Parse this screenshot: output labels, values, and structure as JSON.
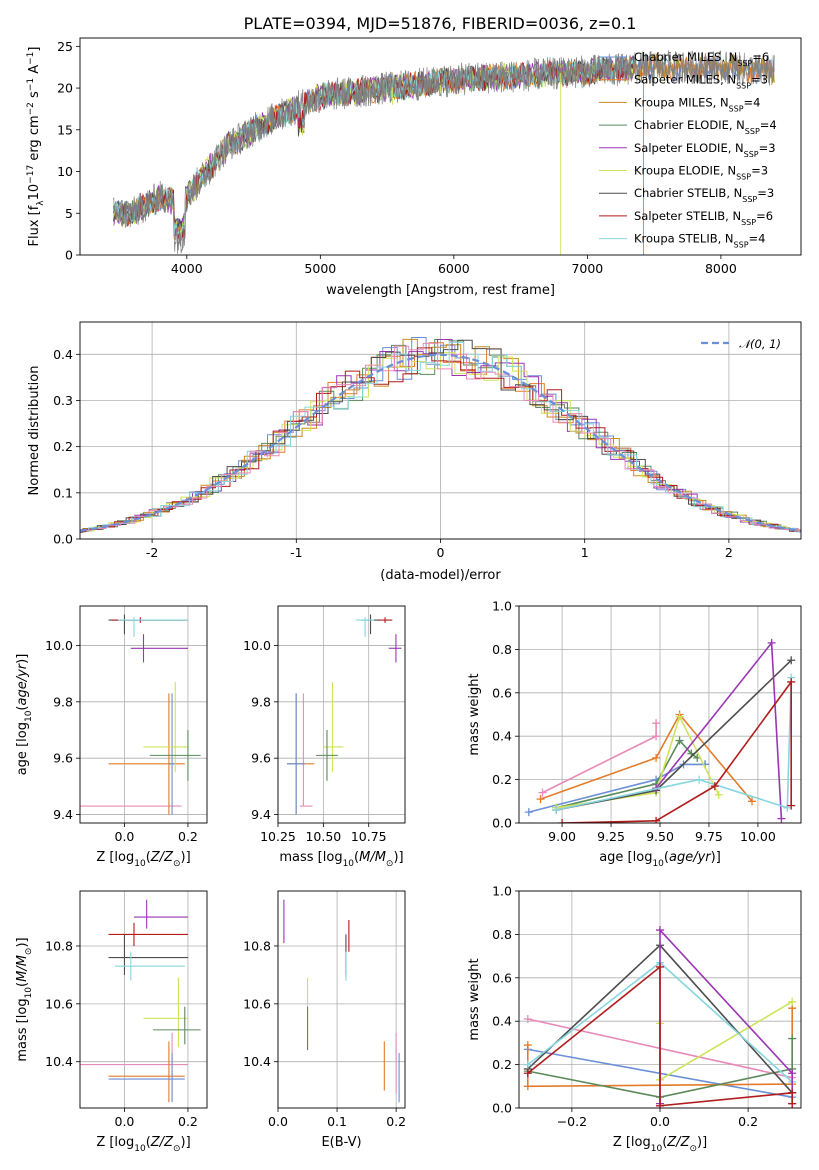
{
  "figure": {
    "title": "PLATE=0394, MJD=51876, FIBERID=0036, z=0.1",
    "colors": {
      "chabrier_miles": "#6a8fd8",
      "salpeter_miles": "#e37b2a",
      "kroupa_miles": "#c98a1e",
      "chabrier_elodie": "#5a8a5a",
      "salpeter_elodie": "#9b35b3",
      "kroupa_elodie": "#cfe35a",
      "chabrier_stelib": "#4d4d4d",
      "salpeter_stelib": "#b01c1c",
      "kroupa_stelib": "#86d6e0",
      "pink": "#e88ab9",
      "data": "#808080",
      "gauss": "#6a8fd8"
    }
  },
  "chart_data": [
    {
      "id": "spectrum",
      "type": "line",
      "title": "PLATE=0394, MJD=51876, FIBERID=0036, z=0.1",
      "xlabel": "wavelength [Angstrom, rest frame]",
      "ylabel": "Flux [fλ10⁻¹⁷ erg cm⁻² s⁻¹ A⁻¹]",
      "xlim": [
        3200,
        8600
      ],
      "ylim": [
        0,
        26
      ],
      "xticks": [
        4000,
        5000,
        6000,
        7000,
        8000
      ],
      "yticks": [
        0,
        5,
        10,
        15,
        20,
        25
      ],
      "legend_position": "right",
      "legend": [
        {
          "label": "Chabrier MILES, N",
          "sub": "SSP",
          "suffix": "=6",
          "key": "chabrier_miles"
        },
        {
          "label": "Salpeter MILES, N",
          "sub": "SSP",
          "suffix": "=3",
          "key": "salpeter_miles"
        },
        {
          "label": "Kroupa MILES, N",
          "sub": "SSP",
          "suffix": "=4",
          "key": "kroupa_miles"
        },
        {
          "label": "Chabrier ELODIE, N",
          "sub": "SSP",
          "suffix": "=4",
          "key": "chabrier_elodie"
        },
        {
          "label": "Salpeter ELODIE, N",
          "sub": "SSP",
          "suffix": "=3",
          "key": "salpeter_elodie"
        },
        {
          "label": "Kroupa ELODIE, N",
          "sub": "SSP",
          "suffix": "=3",
          "key": "kroupa_elodie"
        },
        {
          "label": "Chabrier STELIB, N",
          "sub": "SSP",
          "suffix": "=3",
          "key": "chabrier_stelib"
        },
        {
          "label": "Salpeter STELIB, N",
          "sub": "SSP",
          "suffix": "=6",
          "key": "salpeter_stelib"
        },
        {
          "label": "Kroupa STELIB, N",
          "sub": "SSP",
          "suffix": "=4",
          "key": "kroupa_stelib"
        }
      ],
      "continuum": {
        "x": [
          3450,
          3600,
          3800,
          3950,
          4100,
          4300,
          4600,
          5000,
          5500,
          6000,
          6500,
          7000,
          7500,
          8000,
          8400
        ],
        "y": [
          5,
          5,
          7,
          6,
          9,
          13,
          16,
          19,
          20,
          21,
          21.5,
          22,
          22.5,
          22.5,
          22
        ]
      },
      "dips": [
        {
          "series": "kroupa_elodie",
          "x": 6800,
          "y": 0
        },
        {
          "series": "salpeter_miles",
          "x": 7420,
          "y": 0
        },
        {
          "series": "kroupa_elodie",
          "x": 5540,
          "y": 18
        }
      ]
    },
    {
      "id": "residuals",
      "type": "bar",
      "xlabel": "(data-model)/error",
      "ylabel": "Normed distribution",
      "xlim": [
        -2.5,
        2.5
      ],
      "ylim": [
        0,
        0.47
      ],
      "xticks": [
        -2,
        -1,
        0,
        1,
        2
      ],
      "yticks": [
        0.0,
        0.1,
        0.2,
        0.3,
        0.4
      ],
      "grid": true,
      "legend_position": "top-right",
      "legend_label": "𝒩(0, 1)",
      "gaussian": {
        "mean": 0,
        "sigma": 1,
        "style": "dashed"
      },
      "bin_width": 0.1
    },
    {
      "id": "age_vs_Z",
      "type": "scatter",
      "xlabel": "Z [log₁₀(Z/Z⊙)]",
      "ylabel": "age  [log₁₀(age/yr)]",
      "xlim": [
        -0.14,
        0.26
      ],
      "ylim": [
        9.37,
        10.14
      ],
      "xticks": [
        0.0,
        0.2
      ],
      "yticks": [
        9.4,
        9.6,
        9.8,
        10.0
      ],
      "grid": true,
      "points": [
        {
          "key": "pink",
          "x": 0.05,
          "y": 9.43,
          "xl": -0.14,
          "xh": 0.18,
          "yl": 9.43,
          "yh": 9.43
        },
        {
          "key": "salpeter_miles",
          "x": 0.14,
          "y": 9.58,
          "xl": -0.05,
          "xh": 0.19,
          "yl": 9.4,
          "yh": 9.83
        },
        {
          "key": "chabrier_miles",
          "x": 0.15,
          "y": 9.58,
          "xl": 0.14,
          "xh": 0.16,
          "yl": 9.4,
          "yh": 9.83
        },
        {
          "key": "kroupa_elodie",
          "x": 0.16,
          "y": 9.64,
          "xl": 0.06,
          "xh": 0.2,
          "yl": 9.55,
          "yh": 9.87
        },
        {
          "key": "chabrier_elodie",
          "x": 0.2,
          "y": 9.61,
          "xl": 0.08,
          "xh": 0.24,
          "yl": 9.52,
          "yh": 9.7
        },
        {
          "key": "salpeter_elodie",
          "x": 0.06,
          "y": 9.99,
          "xl": 0.02,
          "xh": 0.2,
          "yl": 9.94,
          "yh": 10.04
        },
        {
          "key": "chabrier_stelib",
          "x": 0.0,
          "y": 10.09,
          "xl": -0.05,
          "xh": 0.2,
          "yl": 10.04,
          "yh": 10.11
        },
        {
          "key": "salpeter_stelib",
          "x": 0.05,
          "y": 10.09,
          "xl": -0.04,
          "xh": 0.19,
          "yl": 10.08,
          "yh": 10.1
        },
        {
          "key": "kroupa_stelib",
          "x": 0.03,
          "y": 10.09,
          "xl": -0.02,
          "xh": 0.2,
          "yl": 10.03,
          "yh": 10.1
        }
      ]
    },
    {
      "id": "age_vs_mass",
      "type": "scatter",
      "xlabel": "mass [log₁₀(M/M⊙)]",
      "xlim": [
        10.25,
        10.95
      ],
      "ylim": [
        9.37,
        10.14
      ],
      "xticks": [
        10.25,
        10.5,
        10.75
      ],
      "yticks": [
        9.4,
        9.6,
        9.8,
        10.0
      ],
      "grid": true,
      "points": [
        {
          "key": "pink",
          "x": 10.39,
          "y": 9.43,
          "xl": 10.37,
          "xh": 10.44,
          "yl": 9.43,
          "yh": 9.83
        },
        {
          "key": "salpeter_miles",
          "x": 10.35,
          "y": 9.58,
          "xl": 10.3,
          "xh": 10.45,
          "yl": 9.4,
          "yh": 9.83
        },
        {
          "key": "chabrier_miles",
          "x": 10.35,
          "y": 9.58,
          "xl": 10.3,
          "xh": 10.4,
          "yl": 9.4,
          "yh": 9.83
        },
        {
          "key": "kroupa_elodie",
          "x": 10.55,
          "y": 9.64,
          "xl": 10.5,
          "xh": 10.61,
          "yl": 9.55,
          "yh": 9.87
        },
        {
          "key": "chabrier_elodie",
          "x": 10.52,
          "y": 9.61,
          "xl": 10.46,
          "xh": 10.58,
          "yl": 9.52,
          "yh": 9.7
        },
        {
          "key": "salpeter_elodie",
          "x": 10.9,
          "y": 9.99,
          "xl": 10.86,
          "xh": 10.93,
          "yl": 9.94,
          "yh": 10.04
        },
        {
          "key": "chabrier_stelib",
          "x": 10.76,
          "y": 10.09,
          "xl": 10.71,
          "xh": 10.81,
          "yl": 10.04,
          "yh": 10.11
        },
        {
          "key": "salpeter_stelib",
          "x": 10.84,
          "y": 10.09,
          "xl": 10.8,
          "xh": 10.88,
          "yl": 10.08,
          "yh": 10.1
        },
        {
          "key": "kroupa_stelib",
          "x": 10.73,
          "y": 10.09,
          "xl": 10.68,
          "xh": 10.78,
          "yl": 10.03,
          "yh": 10.1
        }
      ]
    },
    {
      "id": "weight_vs_age",
      "type": "line",
      "xlabel": "age  [log₁₀(age/yr)]",
      "ylabel": "mass weight",
      "xlim": [
        8.78,
        10.22
      ],
      "ylim": [
        0,
        1.0
      ],
      "xticks": [
        9.0,
        9.25,
        9.5,
        9.75,
        10.0
      ],
      "yticks": [
        0.0,
        0.2,
        0.4,
        0.6,
        0.8,
        1.0
      ],
      "grid": true,
      "series": [
        {
          "key": "chabrier_miles",
          "x": [
            8.83,
            9.48,
            9.62,
            9.73,
            9.73
          ],
          "y": [
            0.05,
            0.2,
            0.27,
            0.27,
            0.27
          ]
        },
        {
          "key": "salpeter_miles",
          "x": [
            8.89,
            9.48,
            9.6,
            9.97
          ],
          "y": [
            0.11,
            0.3,
            0.5,
            0.1
          ]
        },
        {
          "key": "pink",
          "x": [
            8.9,
            9.48,
            9.48
          ],
          "y": [
            0.14,
            0.4,
            0.46
          ]
        },
        {
          "key": "chabrier_elodie",
          "x": [
            8.97,
            9.48,
            9.6,
            9.66,
            9.69
          ],
          "y": [
            0.07,
            0.18,
            0.38,
            0.32,
            0.3
          ]
        },
        {
          "key": "kroupa_elodie",
          "x": [
            8.97,
            9.48,
            9.6,
            9.8
          ],
          "y": [
            0.07,
            0.14,
            0.49,
            0.13
          ]
        },
        {
          "key": "chabrier_stelib",
          "x": [
            8.97,
            9.48,
            10.17
          ],
          "y": [
            0.06,
            0.15,
            0.75
          ]
        },
        {
          "key": "salpeter_elodie",
          "x": [
            9.48,
            10.07,
            10.12
          ],
          "y": [
            0.16,
            0.83,
            0.02
          ]
        },
        {
          "key": "kroupa_stelib",
          "x": [
            8.97,
            9.7,
            10.15,
            10.17
          ],
          "y": [
            0.06,
            0.2,
            0.07,
            0.67
          ]
        },
        {
          "key": "salpeter_stelib",
          "x": [
            9.0,
            9.48,
            9.78,
            10.17,
            10.17
          ],
          "y": [
            0.0,
            0.01,
            0.17,
            0.65,
            0.08
          ]
        }
      ]
    },
    {
      "id": "mass_vs_Z",
      "type": "scatter",
      "xlabel": "Z [log₁₀(Z/Z⊙)]",
      "ylabel": "mass [log₁₀(M/M⊙)]",
      "xlim": [
        -0.14,
        0.26
      ],
      "ylim": [
        10.24,
        10.99
      ],
      "xticks": [
        0.0,
        0.2
      ],
      "yticks": [
        10.4,
        10.6,
        10.8
      ],
      "grid": true,
      "points": [
        {
          "key": "pink",
          "x": 0.15,
          "y": 10.39,
          "xl": -0.14,
          "xh": 0.2,
          "yl": 10.27,
          "yh": 10.5
        },
        {
          "key": "salpeter_miles",
          "x": 0.14,
          "y": 10.35,
          "xl": -0.05,
          "xh": 0.19,
          "yl": 10.26,
          "yh": 10.47
        },
        {
          "key": "chabrier_miles",
          "x": 0.15,
          "y": 10.34,
          "xl": -0.05,
          "xh": 0.19,
          "yl": 10.26,
          "yh": 10.43
        },
        {
          "key": "kroupa_elodie",
          "x": 0.17,
          "y": 10.55,
          "xl": 0.06,
          "xh": 0.2,
          "yl": 10.45,
          "yh": 10.69
        },
        {
          "key": "chabrier_elodie",
          "x": 0.19,
          "y": 10.51,
          "xl": 0.09,
          "xh": 0.24,
          "yl": 10.46,
          "yh": 10.59
        },
        {
          "key": "salpeter_elodie",
          "x": 0.07,
          "y": 10.9,
          "xl": 0.03,
          "xh": 0.2,
          "yl": 10.86,
          "yh": 10.96
        },
        {
          "key": "salpeter_stelib",
          "x": 0.03,
          "y": 10.84,
          "xl": -0.05,
          "xh": 0.2,
          "yl": 10.8,
          "yh": 10.88
        },
        {
          "key": "chabrier_stelib",
          "x": 0.0,
          "y": 10.76,
          "xl": -0.05,
          "xh": 0.2,
          "yl": 10.7,
          "yh": 10.84
        },
        {
          "key": "kroupa_stelib",
          "x": 0.02,
          "y": 10.73,
          "xl": -0.03,
          "xh": 0.19,
          "yl": 10.68,
          "yh": 10.78
        }
      ]
    },
    {
      "id": "mass_vs_ebv",
      "type": "scatter",
      "xlabel": "E(B-V)",
      "xlim": [
        0.0,
        0.215
      ],
      "ylim": [
        10.24,
        10.99
      ],
      "xticks": [
        0.0,
        0.1,
        0.2
      ],
      "yticks": [
        10.4,
        10.6,
        10.8
      ],
      "grid": true,
      "points": [
        {
          "key": "salpeter_elodie",
          "x": 0.01,
          "y": 10.9,
          "yl": 10.81,
          "yh": 10.96
        },
        {
          "key": "kroupa_elodie",
          "x": 0.05,
          "y": 10.55,
          "yl": 10.45,
          "yh": 10.69
        },
        {
          "key": "chabrier_elodie",
          "x": 0.05,
          "y": 10.51,
          "yl": 10.44,
          "yh": 10.59
        },
        {
          "key": "salpeter_stelib",
          "x": 0.12,
          "y": 10.84,
          "yl": 10.78,
          "yh": 10.89
        },
        {
          "key": "chabrier_stelib",
          "x": 0.115,
          "y": 10.76,
          "yl": 10.7,
          "yh": 10.84
        },
        {
          "key": "kroupa_stelib",
          "x": 0.115,
          "y": 10.73,
          "yl": 10.68,
          "yh": 10.78
        },
        {
          "key": "salpeter_miles",
          "x": 0.18,
          "y": 10.35,
          "yl": 10.3,
          "yh": 10.47
        },
        {
          "key": "pink",
          "x": 0.2,
          "y": 10.39,
          "yl": 10.29,
          "yh": 10.5
        },
        {
          "key": "chabrier_miles",
          "x": 0.205,
          "y": 10.34,
          "yl": 10.26,
          "yh": 10.43
        }
      ]
    },
    {
      "id": "weight_vs_Z",
      "type": "line",
      "xlabel": "Z [log₁₀(Z/Z⊙)]",
      "ylabel": "mass weight",
      "xlim": [
        -0.32,
        0.32
      ],
      "ylim": [
        0,
        1.0
      ],
      "xticks": [
        -0.2,
        0.0,
        0.2
      ],
      "yticks": [
        0.0,
        0.2,
        0.4,
        0.6,
        0.8,
        1.0
      ],
      "grid": true,
      "series": [
        {
          "key": "pink",
          "x": [
            -0.3,
            0.3
          ],
          "y": [
            0.41,
            0.14
          ]
        },
        {
          "key": "chabrier_miles",
          "x": [
            -0.3,
            0.3
          ],
          "y": [
            0.27,
            0.05
          ]
        },
        {
          "key": "salpeter_miles",
          "x": [
            -0.3,
            -0.3,
            0.3,
            0.3
          ],
          "y": [
            0.29,
            0.1,
            0.11,
            0.46
          ]
        },
        {
          "key": "kroupa_elodie",
          "x": [
            0.0,
            0.0,
            0.3
          ],
          "y": [
            0.39,
            0.13,
            0.49
          ]
        },
        {
          "key": "chabrier_elodie",
          "x": [
            -0.3,
            0.0,
            0.3,
            0.3
          ],
          "y": [
            0.17,
            0.05,
            0.18,
            0.32
          ]
        },
        {
          "key": "chabrier_stelib",
          "x": [
            -0.3,
            0.0,
            0.3
          ],
          "y": [
            0.18,
            0.75,
            0.07
          ]
        },
        {
          "key": "kroupa_stelib",
          "x": [
            -0.3,
            0.0,
            0.3
          ],
          "y": [
            0.2,
            0.67,
            0.12
          ]
        },
        {
          "key": "salpeter_elodie",
          "x": [
            0.0,
            0.0,
            0.3,
            0.3
          ],
          "y": [
            0.02,
            0.82,
            0.16,
            0.02
          ]
        },
        {
          "key": "salpeter_stelib",
          "x": [
            -0.3,
            0.0,
            0.0,
            0.3,
            0.3
          ],
          "y": [
            0.16,
            0.65,
            0.01,
            0.07,
            0.02
          ]
        }
      ]
    }
  ]
}
